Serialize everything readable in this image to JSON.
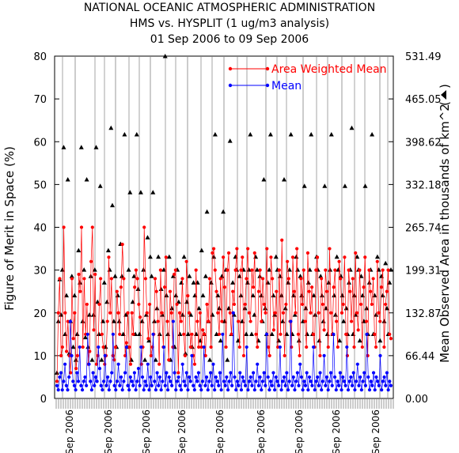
{
  "chart_data": {
    "type": "line",
    "title": [
      "NATIONAL OCEANIC ATMOSPHERIC ADMINISTRATION",
      "HMS vs. HYSPLIT (1 ug/m3 analysis)",
      "01 Sep 2006 to 09 Sep 2006"
    ],
    "ylabel_left": "Figure of Merit in Space (%)",
    "ylabel_right": "Mean Observed Area in thousands of km^2",
    "right_axis_marker": "triangle",
    "ylim_left": [
      0,
      80
    ],
    "yticks_left": [
      "0",
      "10",
      "20",
      "30",
      "40",
      "50",
      "60",
      "70",
      "80"
    ],
    "ylim_right": [
      0,
      531.49
    ],
    "yticks_right": [
      "0.00",
      "66.44",
      "132.87",
      "199.31",
      "265.74",
      "332.18",
      "398.62",
      "465.05",
      "531.49"
    ],
    "x_tick_label": "Sep 2006",
    "x_tick_count": 9,
    "legend_position": "top-right",
    "grid": false,
    "series": [
      {
        "name": "Area Weighted Mean",
        "color": "#ff0000",
        "marker": "circle",
        "values": [
          4,
          20,
          28,
          10,
          12,
          40,
          20,
          11,
          18,
          10,
          6,
          28,
          14,
          20,
          7,
          10,
          29,
          25,
          40,
          12,
          28,
          15,
          22,
          8,
          11,
          32,
          40,
          16,
          29,
          8,
          10,
          22,
          28,
          15,
          12,
          8,
          10,
          18,
          33,
          20,
          28,
          10,
          9,
          12,
          25,
          20,
          15,
          26,
          36,
          28,
          10,
          13,
          20,
          12,
          8,
          20,
          15,
          26,
          30,
          28,
          22,
          19,
          8,
          12,
          40,
          28,
          20,
          14,
          22,
          10,
          12,
          15,
          28,
          25,
          18,
          8,
          30,
          20,
          12,
          26,
          33,
          18,
          9,
          25,
          20,
          12,
          29,
          30,
          22,
          6,
          20,
          18,
          28,
          15,
          10,
          32,
          24,
          20,
          12,
          15,
          10,
          8,
          30,
          18,
          12,
          20,
          12,
          16,
          15,
          10,
          22,
          18,
          28,
          12,
          34,
          35,
          30,
          25,
          20,
          15,
          28,
          18,
          33,
          26,
          12,
          30,
          34,
          20,
          15,
          25,
          22,
          30,
          35,
          18,
          12,
          30,
          33,
          10,
          22,
          28,
          35,
          20,
          18,
          30,
          26,
          34,
          15,
          12,
          25,
          30,
          18,
          28,
          22,
          20,
          35,
          12,
          10,
          33,
          28,
          16,
          20,
          25,
          12,
          30,
          15,
          37,
          20,
          10,
          22,
          32,
          28,
          18,
          12,
          33,
          25,
          20,
          35,
          15,
          10,
          28,
          22,
          30,
          18,
          12,
          34,
          25,
          20,
          26,
          15,
          12,
          30,
          33,
          20,
          10,
          28,
          22,
          16,
          30,
          25,
          12,
          35,
          20,
          15,
          26,
          30,
          18,
          12,
          32,
          28,
          20,
          22,
          33,
          15,
          10,
          30,
          25,
          18,
          28,
          12,
          34,
          20,
          16,
          30,
          22,
          12,
          26,
          33,
          18,
          10,
          30,
          25,
          22,
          28,
          15,
          12,
          32,
          20,
          18,
          26,
          30,
          12,
          22,
          25,
          30,
          15,
          14
        ]
      },
      {
        "name": "Mean",
        "color": "#0000ff",
        "marker": "circle",
        "values": [
          3,
          2,
          5,
          6,
          2,
          4,
          8,
          3,
          2,
          5,
          18,
          10,
          4,
          3,
          2,
          6,
          4,
          12,
          3,
          2,
          4,
          5,
          3,
          15,
          8,
          4,
          2,
          6,
          3,
          5,
          4,
          12,
          7,
          3,
          2,
          4,
          10,
          3,
          5,
          2,
          4,
          6,
          15,
          3,
          2,
          4,
          8,
          3,
          5,
          2,
          4,
          6,
          12,
          3,
          2,
          5,
          4,
          3,
          6,
          2,
          4,
          7,
          3,
          12,
          5,
          2,
          4,
          3,
          8,
          2,
          5,
          3,
          15,
          4,
          2,
          6,
          3,
          5,
          2,
          4,
          12,
          3,
          6,
          2,
          5,
          4,
          3,
          18,
          6,
          2,
          4,
          5,
          3,
          2,
          8,
          4,
          3,
          6,
          2,
          5,
          4,
          10,
          3,
          2,
          5,
          4,
          6,
          3,
          2,
          4,
          12,
          3,
          5,
          2,
          4,
          6,
          3,
          8,
          2,
          5,
          4,
          3,
          6,
          2,
          15,
          4,
          3,
          5,
          2,
          4,
          6,
          3,
          20,
          5,
          2,
          4,
          3,
          6,
          2,
          5,
          4,
          3,
          12,
          2,
          4,
          5,
          3,
          6,
          2,
          4,
          8,
          3,
          5,
          2,
          4,
          6,
          3,
          15,
          5,
          2,
          4,
          3,
          6,
          2,
          5,
          4,
          3,
          12,
          2,
          4,
          5,
          3,
          6,
          2,
          4,
          18,
          3,
          5,
          2,
          4,
          6,
          3,
          8,
          5,
          2,
          4,
          3,
          6,
          2,
          5,
          4,
          3,
          12,
          2,
          4,
          5,
          3,
          6,
          2,
          4,
          10,
          3,
          5,
          2,
          4,
          6,
          3,
          15,
          5,
          2,
          4,
          3,
          6,
          2,
          5,
          4,
          3,
          12,
          2,
          4,
          5,
          3,
          6,
          2,
          4,
          8,
          3,
          5,
          2,
          4,
          6,
          3,
          15,
          5,
          2,
          4,
          3,
          6,
          2,
          5,
          4,
          3,
          10,
          2,
          4,
          5,
          3,
          6,
          2,
          4,
          3
        ]
      },
      {
        "name": "Mean Observed Area",
        "axis": "right",
        "color": "#000000",
        "marker": "triangle",
        "values": [
          40,
          120,
          185,
          130,
          200,
          390,
          100,
          160,
          340,
          70,
          120,
          190,
          80,
          160,
          60,
          100,
          230,
          180,
          390,
          120,
          200,
          95,
          340,
          80,
          130,
          190,
          60,
          130,
          200,
          390,
          150,
          100,
          330,
          60,
          120,
          180,
          80,
          150,
          230,
          200,
          420,
          300,
          120,
          190,
          80,
          160,
          120,
          240,
          190,
          100,
          410,
          130,
          80,
          200,
          320,
          60,
          150,
          190,
          100,
          410,
          170,
          100,
          320,
          120,
          200,
          60,
          130,
          250,
          90,
          220,
          190,
          320,
          120,
          60,
          140,
          220,
          100,
          170,
          130,
          200,
          540,
          160,
          100,
          220,
          60,
          140,
          190,
          80,
          160,
          200,
          150,
          100,
          180,
          130,
          220,
          70,
          150,
          100,
          190,
          130,
          80,
          180,
          160,
          100,
          180,
          140,
          90,
          230,
          160,
          100,
          190,
          290,
          120,
          60,
          180,
          130,
          220,
          410,
          100,
          160,
          140,
          90,
          190,
          290,
          120,
          200,
          60,
          140,
          400,
          100,
          180,
          130,
          220,
          200,
          90,
          190,
          160,
          120,
          200,
          140,
          100,
          180,
          200,
          410,
          100,
          160,
          130,
          220,
          200,
          90,
          190,
          160,
          120,
          340,
          140,
          100,
          180,
          200,
          410,
          100,
          160,
          130,
          220,
          200,
          90,
          190,
          160,
          120,
          340,
          140,
          100,
          180,
          200,
          410,
          100,
          160,
          130,
          220,
          200,
          90,
          190,
          160,
          120,
          330,
          140,
          100,
          180,
          200,
          410,
          100,
          160,
          130,
          220,
          200,
          90,
          190,
          160,
          120,
          330,
          140,
          100,
          180,
          200,
          410,
          100,
          160,
          130,
          220,
          200,
          90,
          190,
          160,
          120,
          330,
          140,
          100,
          180,
          200,
          420,
          100,
          160,
          130,
          220,
          200,
          90,
          190,
          160,
          120,
          330,
          140,
          100,
          180,
          200,
          410,
          100,
          160,
          130,
          220,
          200,
          90,
          190,
          160,
          120,
          210,
          140,
          100,
          180,
          200
        ]
      }
    ]
  }
}
